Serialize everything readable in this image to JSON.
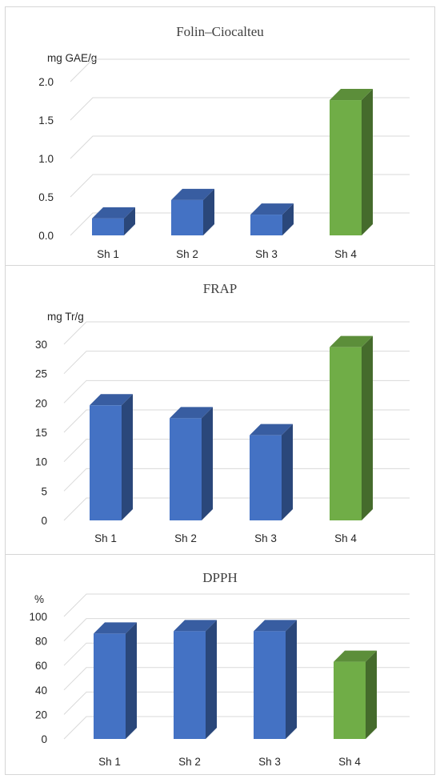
{
  "chart_data": [
    {
      "type": "bar",
      "title": "Folin–Ciocalteu",
      "ylabel": "mg GAE/g",
      "categories": [
        "Sh 1",
        "Sh 2",
        "Sh 3",
        "Sh 4"
      ],
      "values": [
        0.22,
        0.46,
        0.27,
        1.76
      ],
      "ylim": [
        0,
        2.0
      ],
      "yticks": [
        "0.0",
        "0.5",
        "1.0",
        "1.5",
        "2.0"
      ],
      "bar_colors": [
        "#4472c4",
        "#4472c4",
        "#4472c4",
        "#70ad47"
      ],
      "grid": true,
      "legend": "none"
    },
    {
      "type": "bar",
      "title": "FRAP",
      "ylabel": "mg Tr/g",
      "categories": [
        "Sh 1",
        "Sh 2",
        "Sh 3",
        "Sh 4"
      ],
      "values": [
        19.6,
        17.4,
        14.5,
        29.5
      ],
      "ylim": [
        0,
        30
      ],
      "yticks": [
        "0",
        "5",
        "10",
        "15",
        "20",
        "25",
        "30"
      ],
      "bar_colors": [
        "#4472c4",
        "#4472c4",
        "#4472c4",
        "#70ad47"
      ],
      "grid": true,
      "legend": "none"
    },
    {
      "type": "bar",
      "title": "DPPH",
      "ylabel": "%",
      "categories": [
        "Sh 1",
        "Sh 2",
        "Sh 3",
        "Sh 4"
      ],
      "values": [
        86,
        88,
        88,
        63
      ],
      "ylim": [
        0,
        100
      ],
      "yticks": [
        "0",
        "20",
        "40",
        "60",
        "80",
        "100"
      ],
      "bar_colors": [
        "#4472c4",
        "#4472c4",
        "#4472c4",
        "#70ad47"
      ],
      "grid": true,
      "legend": "none"
    }
  ]
}
